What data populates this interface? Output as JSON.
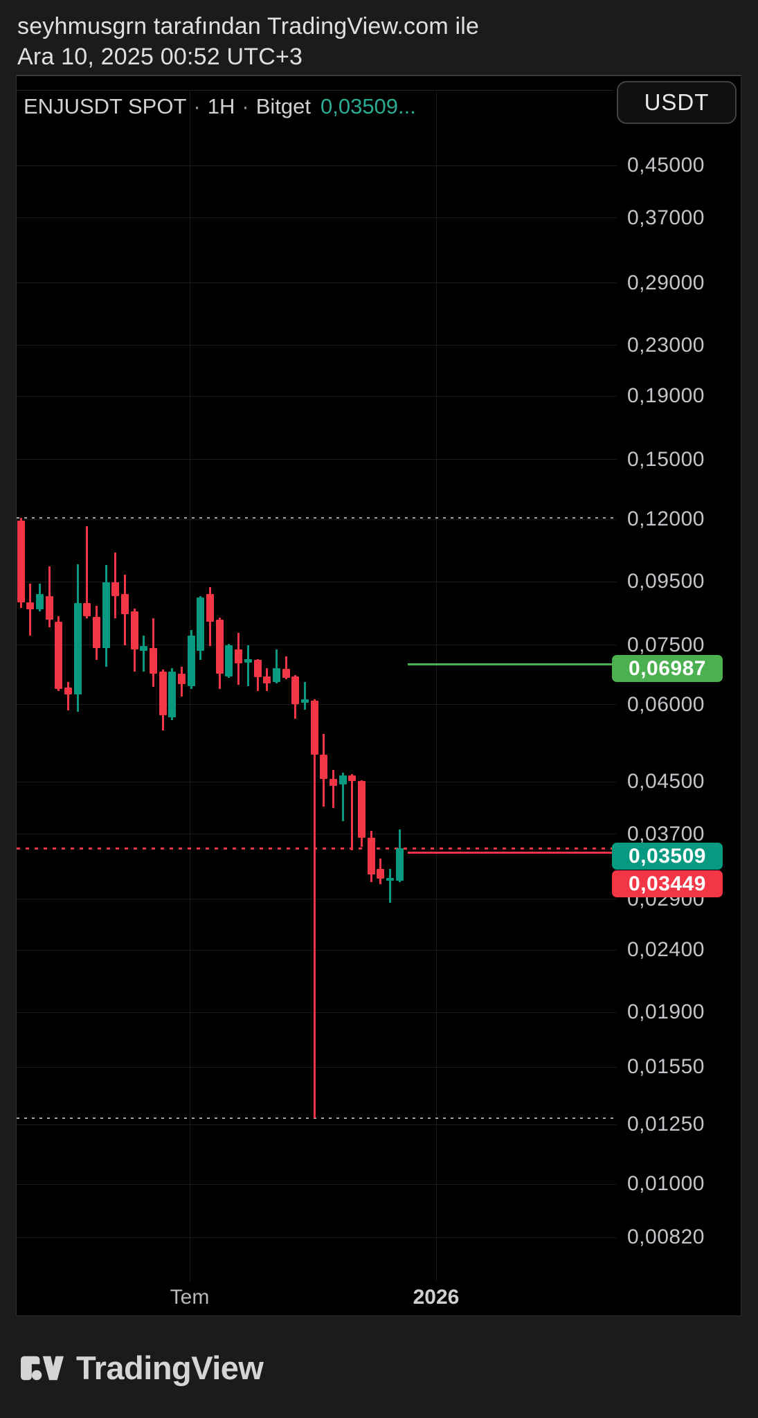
{
  "page": {
    "header_line1": "seyhmusgrn tarafından TradingView.com ile",
    "header_line2": "Ara 10, 2025 00:52 UTC+3",
    "footer_text": "TradingView"
  },
  "chart": {
    "title": {
      "symbol": "ENJUSDT SPOT",
      "sep": "·",
      "interval": "1H",
      "exchange": "Bitget",
      "price": "0,03509..."
    },
    "currency_button": "USDT",
    "colors": {
      "up": "#089981",
      "down": "#f23645",
      "background": "#000000",
      "page_background": "#1b1b1d",
      "target_line": "#4caf50",
      "stop_line": "#f23645",
      "current_dotted": "#f23645",
      "range_dotted": "#a6a8ab",
      "title_price_text": "#2bab93"
    }
  },
  "chart_data": {
    "type": "candlestick",
    "title": "ENJUSDT SPOT · 1H · Bitget",
    "symbol": "ENJUSDT",
    "market": "SPOT",
    "interval": "1H",
    "exchange": "Bitget",
    "last_price": 0.03509,
    "last_price_label": "0,03509...",
    "scale": "logarithmic",
    "grid": true,
    "legend_position": "top-left",
    "y_axis": {
      "side": "right",
      "range": [
        0.0075,
        0.52
      ],
      "ticks": [
        {
          "label": "0,45000",
          "value": 0.45
        },
        {
          "label": "0,37000",
          "value": 0.37
        },
        {
          "label": "0,29000",
          "value": 0.29
        },
        {
          "label": "0,23000",
          "value": 0.23
        },
        {
          "label": "0,19000",
          "value": 0.19
        },
        {
          "label": "0,15000",
          "value": 0.15
        },
        {
          "label": "0,12000",
          "value": 0.12
        },
        {
          "label": "0,09500",
          "value": 0.095
        },
        {
          "label": "0,07500",
          "value": 0.075
        },
        {
          "label": "0,06000",
          "value": 0.06
        },
        {
          "label": "0,04500",
          "value": 0.045
        },
        {
          "label": "0,03700",
          "value": 0.037
        },
        {
          "label": "0,02900",
          "value": 0.029
        },
        {
          "label": "0,02400",
          "value": 0.024
        },
        {
          "label": "0,01900",
          "value": 0.019
        },
        {
          "label": "0,01550",
          "value": 0.0155
        },
        {
          "label": "0,01250",
          "value": 0.0125
        },
        {
          "label": "0,01000",
          "value": 0.01
        },
        {
          "label": "0,00820",
          "value": 0.0082
        }
      ]
    },
    "x_axis": {
      "ticks": [
        {
          "label": "Tem",
          "bold": false,
          "frac": 0.288
        },
        {
          "label": "2026",
          "bold": true,
          "frac": 0.699
        }
      ]
    },
    "range_markers": {
      "high": {
        "value": 0.1206,
        "style": "dotted"
      },
      "low": {
        "value": 0.0128,
        "style": "dotted"
      }
    },
    "price_lines": [
      {
        "id": "target",
        "value": 0.06987,
        "label": "0,06987",
        "color": "#4caf50",
        "style": "solid",
        "from_last_candle": true
      },
      {
        "id": "current",
        "value": 0.03509,
        "label": "0,03509",
        "color": "#f23645",
        "badge_color": "#089981",
        "style": "dotted",
        "full_width": true
      },
      {
        "id": "stop",
        "value": 0.03449,
        "label": "0,03449",
        "color": "#f23645",
        "style": "solid",
        "from_last_candle": true
      }
    ],
    "candles": [
      {
        "o": 0.1194,
        "h": 0.1206,
        "l": 0.0862,
        "c": 0.088
      },
      {
        "o": 0.088,
        "h": 0.0943,
        "l": 0.0777,
        "c": 0.0857
      },
      {
        "o": 0.0857,
        "h": 0.0943,
        "l": 0.085,
        "c": 0.0908
      },
      {
        "o": 0.09,
        "h": 0.1006,
        "l": 0.0801,
        "c": 0.0825
      },
      {
        "o": 0.0818,
        "h": 0.0835,
        "l": 0.0632,
        "c": 0.0637
      },
      {
        "o": 0.064,
        "h": 0.0653,
        "l": 0.0588,
        "c": 0.0623
      },
      {
        "o": 0.0623,
        "h": 0.1014,
        "l": 0.0585,
        "c": 0.0878
      },
      {
        "o": 0.0878,
        "h": 0.1169,
        "l": 0.0829,
        "c": 0.0835
      },
      {
        "o": 0.0833,
        "h": 0.0869,
        "l": 0.071,
        "c": 0.0742
      },
      {
        "o": 0.0742,
        "h": 0.1012,
        "l": 0.0692,
        "c": 0.0948
      },
      {
        "o": 0.0948,
        "h": 0.106,
        "l": 0.0829,
        "c": 0.09
      },
      {
        "o": 0.0908,
        "h": 0.0976,
        "l": 0.0749,
        "c": 0.0842
      },
      {
        "o": 0.0851,
        "h": 0.086,
        "l": 0.0679,
        "c": 0.0738
      },
      {
        "o": 0.0734,
        "h": 0.0777,
        "l": 0.0679,
        "c": 0.0747
      },
      {
        "o": 0.0742,
        "h": 0.0829,
        "l": 0.0642,
        "c": 0.0674
      },
      {
        "o": 0.0679,
        "h": 0.0685,
        "l": 0.0545,
        "c": 0.0577
      },
      {
        "o": 0.0573,
        "h": 0.0688,
        "l": 0.0567,
        "c": 0.0679
      },
      {
        "o": 0.0674,
        "h": 0.0692,
        "l": 0.0619,
        "c": 0.0648
      },
      {
        "o": 0.0643,
        "h": 0.0793,
        "l": 0.0637,
        "c": 0.0777
      },
      {
        "o": 0.0734,
        "h": 0.09,
        "l": 0.071,
        "c": 0.0896
      },
      {
        "o": 0.0908,
        "h": 0.0931,
        "l": 0.0747,
        "c": 0.0818
      },
      {
        "o": 0.0825,
        "h": 0.0832,
        "l": 0.0637,
        "c": 0.0674
      },
      {
        "o": 0.0667,
        "h": 0.0754,
        "l": 0.0663,
        "c": 0.0749
      },
      {
        "o": 0.0738,
        "h": 0.0785,
        "l": 0.0646,
        "c": 0.07
      },
      {
        "o": 0.0702,
        "h": 0.0749,
        "l": 0.0644,
        "c": 0.0711
      },
      {
        "o": 0.071,
        "h": 0.0712,
        "l": 0.0632,
        "c": 0.0665
      },
      {
        "o": 0.0667,
        "h": 0.0688,
        "l": 0.0632,
        "c": 0.065
      },
      {
        "o": 0.0653,
        "h": 0.0738,
        "l": 0.065,
        "c": 0.0688
      },
      {
        "o": 0.0686,
        "h": 0.0719,
        "l": 0.066,
        "c": 0.0663
      },
      {
        "o": 0.0667,
        "h": 0.067,
        "l": 0.057,
        "c": 0.0601
      },
      {
        "o": 0.0604,
        "h": 0.0653,
        "l": 0.0589,
        "c": 0.0612
      },
      {
        "o": 0.0609,
        "h": 0.0612,
        "l": 0.0128,
        "c": 0.0498
      },
      {
        "o": 0.0498,
        "h": 0.0538,
        "l": 0.041,
        "c": 0.0455
      },
      {
        "o": 0.0455,
        "h": 0.047,
        "l": 0.0408,
        "c": 0.0443
      },
      {
        "o": 0.0446,
        "h": 0.0465,
        "l": 0.0388,
        "c": 0.0461
      },
      {
        "o": 0.0461,
        "h": 0.0463,
        "l": 0.0348,
        "c": 0.0451
      },
      {
        "o": 0.0451,
        "h": 0.0453,
        "l": 0.0353,
        "c": 0.0365
      },
      {
        "o": 0.0365,
        "h": 0.0375,
        "l": 0.0309,
        "c": 0.0318
      },
      {
        "o": 0.0325,
        "h": 0.0338,
        "l": 0.0307,
        "c": 0.0313
      },
      {
        "o": 0.0311,
        "h": 0.0325,
        "l": 0.0286,
        "c": 0.0314
      },
      {
        "o": 0.0311,
        "h": 0.0377,
        "l": 0.0309,
        "c": 0.03509
      }
    ]
  }
}
